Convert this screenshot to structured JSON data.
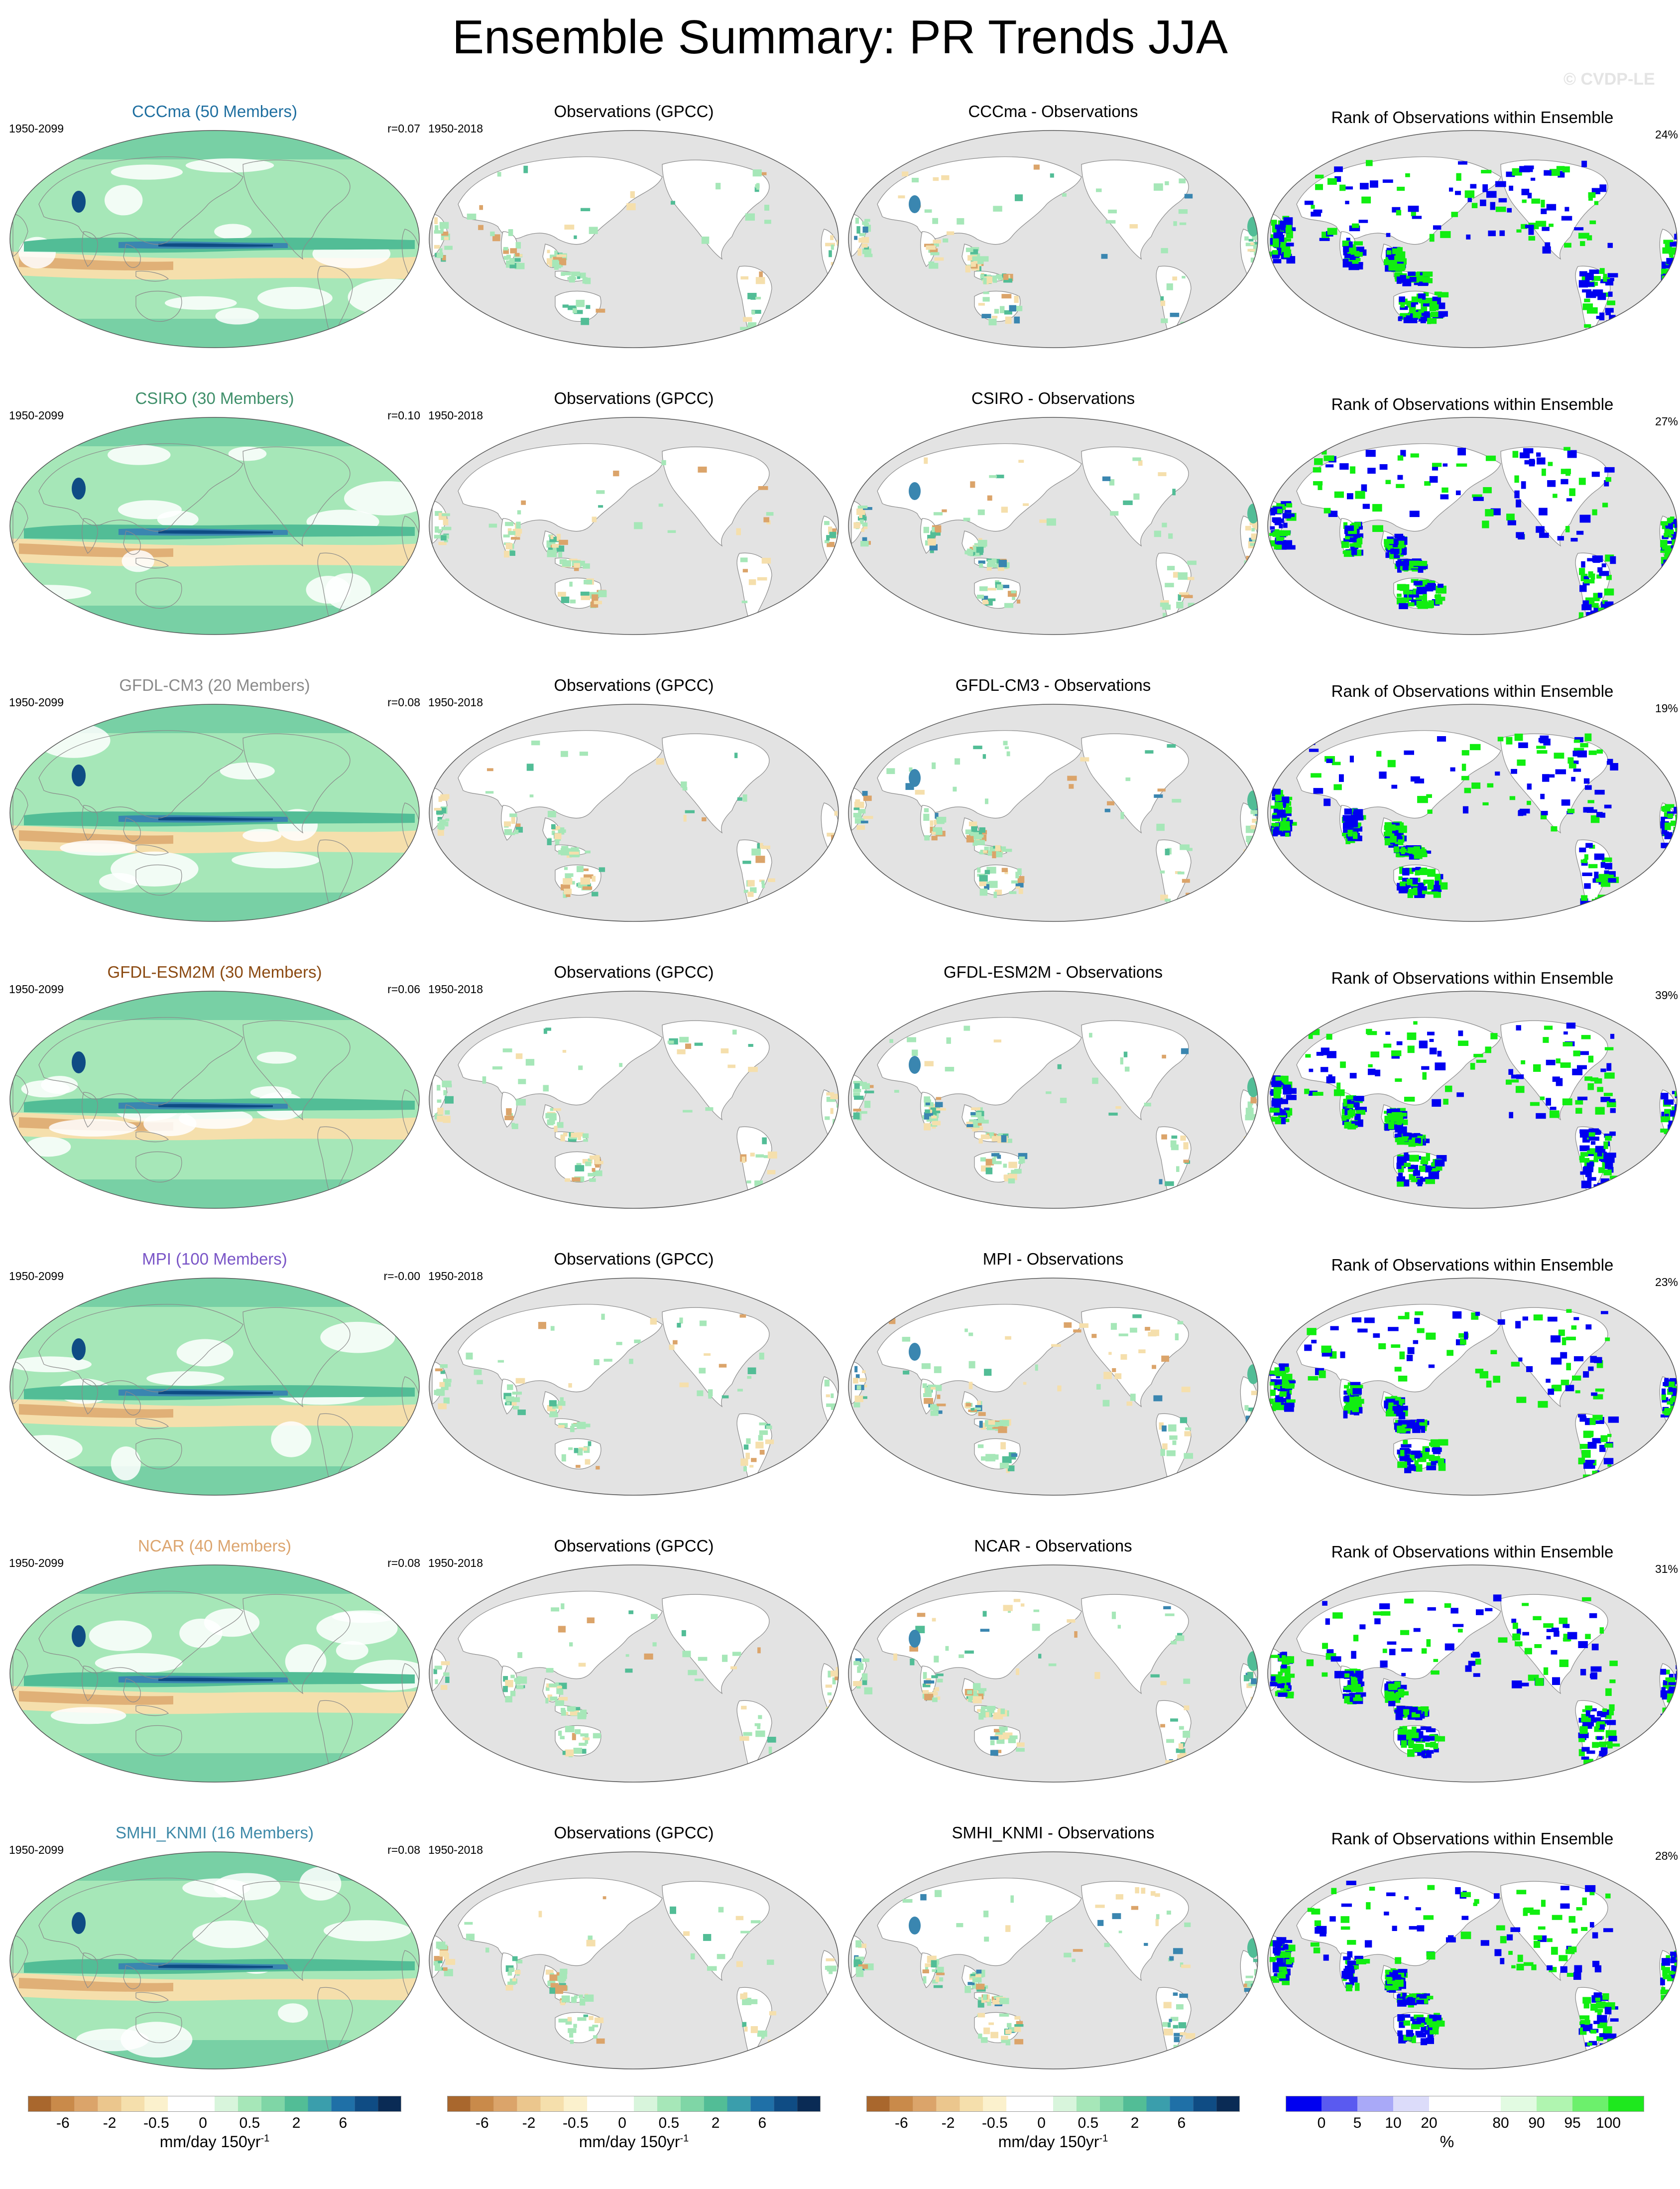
{
  "title": "Ensemble Summary: PR Trends JJA",
  "watermark": "© CVDP-LE",
  "obs_title": "Observations (GPCC)",
  "rank_title": "Rank of Observations within Ensemble",
  "rows": [
    {
      "model": "CCCma (50 Members)",
      "color": "#1f6fa0",
      "period": "1950-2099",
      "r": "r=0.07",
      "obs_period": "1950-2018",
      "diff_title": "CCCma - Observations",
      "rank_pct": "24%"
    },
    {
      "model": "CSIRO (30 Members)",
      "color": "#3f8f6a",
      "period": "1950-2099",
      "r": "r=0.10",
      "obs_period": "1950-2018",
      "diff_title": "CSIRO - Observations",
      "rank_pct": "27%"
    },
    {
      "model": "GFDL-CM3 (20 Members)",
      "color": "#8a8a8a",
      "period": "1950-2099",
      "r": "r=0.08",
      "obs_period": "1950-2018",
      "diff_title": "GFDL-CM3 - Observations",
      "rank_pct": "19%"
    },
    {
      "model": "GFDL-ESM2M (30 Members)",
      "color": "#8b4a12",
      "period": "1950-2099",
      "r": "r=0.06",
      "obs_period": "1950-2018",
      "diff_title": "GFDL-ESM2M - Observations",
      "rank_pct": "39%"
    },
    {
      "model": "MPI (100 Members)",
      "color": "#7a55c7",
      "period": "1950-2099",
      "r": "r=-0.00",
      "obs_period": "1950-2018",
      "diff_title": "MPI - Observations",
      "rank_pct": "23%"
    },
    {
      "model": "NCAR (40 Members)",
      "color": "#dca56f",
      "period": "1950-2099",
      "r": "r=0.08",
      "obs_period": "1950-2018",
      "diff_title": "NCAR - Observations",
      "rank_pct": "31%"
    },
    {
      "model": "SMHI_KNMI (16 Members)",
      "color": "#3e89a8",
      "period": "1950-2099",
      "r": "r=0.08",
      "obs_period": "1950-2018",
      "diff_title": "SMHI_KNMI - Observations",
      "rank_pct": "28%"
    }
  ],
  "trend_colorbar": {
    "colors": [
      "#a9672d",
      "#c98a4a",
      "#dba46a",
      "#ebc68d",
      "#f5dfac",
      "#fbf1cd",
      "#ffffff",
      "#ffffff",
      "#d8f5dc",
      "#a6e7b8",
      "#7fd6a6",
      "#52bd96",
      "#3a9eac",
      "#1f70a7",
      "#0f4c84",
      "#0a2b55"
    ],
    "tick_labels": [
      "-6",
      "-2",
      "-0.5",
      "0",
      "0.5",
      "2",
      "6"
    ],
    "units": "mm/day 150yr",
    "units_sup": "-1"
  },
  "rank_colorbar": {
    "colors": [
      "#0000f0",
      "#5a5af0",
      "#a9a9f8",
      "#dcdcfa",
      "#ffffff",
      "#ffffff",
      "#e2fbe2",
      "#b0f5b0",
      "#6cf06c",
      "#1ee81e"
    ],
    "tick_labels": [
      "0",
      "5",
      "10",
      "20",
      "80",
      "90",
      "95",
      "100"
    ],
    "units": "%"
  },
  "palette": {
    "land_gray": "#e3e3e3",
    "ocean_white": "#ffffff",
    "wet_light": "#a6e7b8",
    "wet_mid": "#52bd96",
    "wet_strong": "#3a86b0",
    "wet_dark": "#0f4c84",
    "dry_light": "#f5dfac",
    "dry_mid": "#dba46a",
    "dry_strong": "#b7773a",
    "rank_low": "#0000f0",
    "rank_high": "#11ee11"
  }
}
